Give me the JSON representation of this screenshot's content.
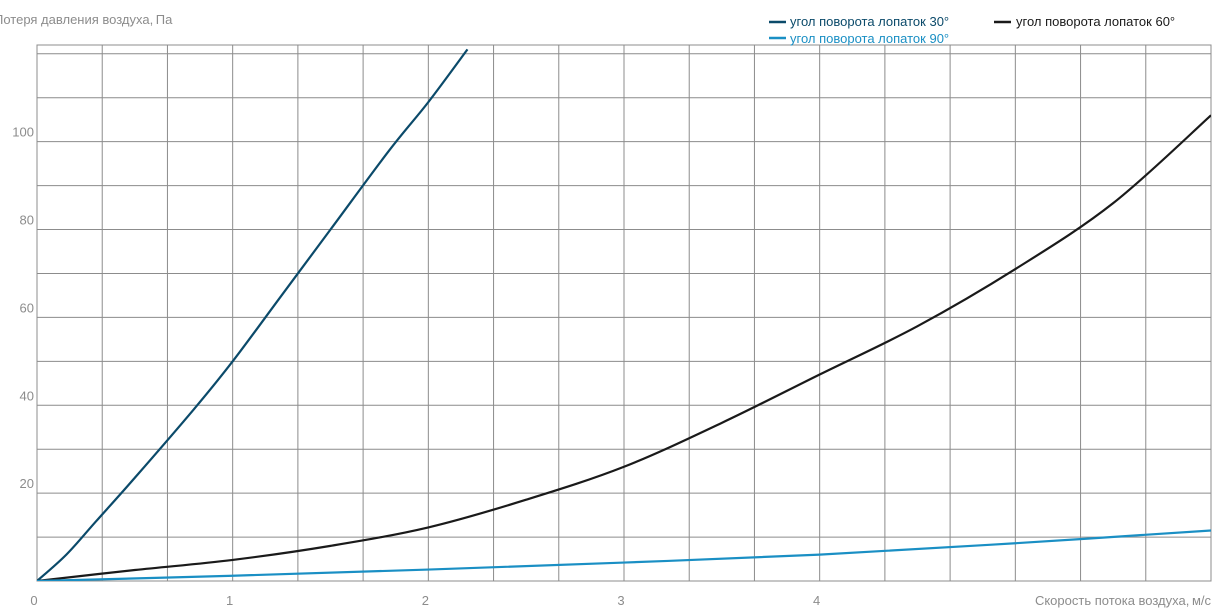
{
  "chart_data": {
    "type": "line",
    "ylabel": "Потеря давления воздуха, Па",
    "xlabel": "Скорость потока воздуха, м/с",
    "xlim": [
      0,
      6
    ],
    "ylim": [
      0,
      122
    ],
    "x_ticks": [
      0,
      1,
      2,
      3,
      4
    ],
    "y_ticks": [
      20,
      40,
      60,
      80,
      100
    ],
    "x_grid_step": 0.3333,
    "y_grid_step": 10,
    "grid": true,
    "legend_position": "top-right",
    "series": [
      {
        "name": "угол поворота лопаток 30°",
        "color": "#0b4a6a",
        "x": [
          0,
          0.15,
          0.3,
          0.5,
          0.8,
          1.0,
          1.25,
          1.5,
          1.8,
          2.0,
          2.2
        ],
        "y": [
          0,
          6,
          13.5,
          23.5,
          39,
          50,
          65,
          80,
          98,
          109,
          121
        ]
      },
      {
        "name": "угол поворота лопаток 60°",
        "color": "#1a1a1a",
        "x": [
          0,
          0.5,
          1.0,
          1.5,
          2.0,
          2.5,
          3.0,
          3.5,
          4.0,
          4.5,
          5.0,
          5.5,
          6.0
        ],
        "y": [
          0,
          2.5,
          4.8,
          8,
          12.2,
          18.5,
          26,
          36,
          47,
          58,
          71,
          86,
          106
        ]
      },
      {
        "name": "угол поворота лопаток 90°",
        "color": "#1a8fc4",
        "x": [
          0,
          1.0,
          2.0,
          3.0,
          4.0,
          5.0,
          6.0
        ],
        "y": [
          0,
          1.2,
          2.6,
          4.2,
          6.0,
          8.6,
          11.5
        ]
      }
    ]
  }
}
